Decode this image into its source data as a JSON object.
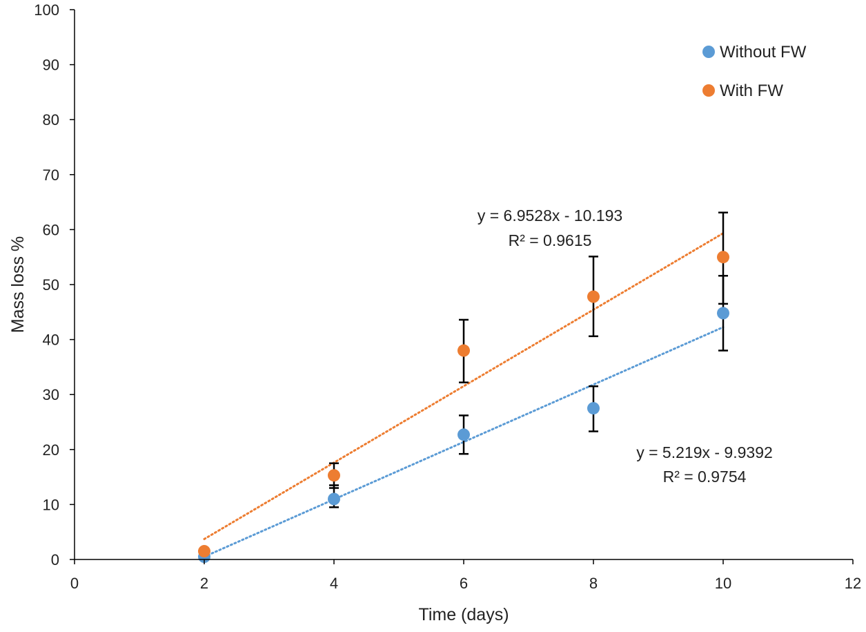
{
  "chart_data": {
    "type": "scatter",
    "title": "",
    "xlabel": "Time (days)",
    "ylabel": "Mass loss %",
    "xlim": [
      0,
      12
    ],
    "ylim": [
      0,
      100
    ],
    "xticks": [
      0,
      2,
      4,
      6,
      8,
      10,
      12
    ],
    "yticks": [
      0,
      10,
      20,
      30,
      40,
      50,
      60,
      70,
      80,
      90,
      100
    ],
    "grid": false,
    "legend_position": "top-right",
    "series": [
      {
        "name": "Without FW",
        "color": "#5B9BD5",
        "x": [
          2,
          4,
          6,
          8,
          10
        ],
        "y": [
          0.5,
          11,
          22.7,
          27.5,
          44.8
        ],
        "err_upper": [
          0.5,
          2.5,
          3.5,
          4.0,
          6.8
        ],
        "err_lower": [
          0.5,
          1.5,
          3.5,
          4.2,
          6.8
        ],
        "trendline": {
          "slope": 5.219,
          "intercept": -9.9392,
          "x_range": [
            2,
            10
          ],
          "equation": "y = 5.219x - 9.9392",
          "r2": "R² = 0.9754"
        }
      },
      {
        "name": "With FW",
        "color": "#ED7D31",
        "x": [
          2,
          4,
          6,
          8,
          10
        ],
        "y": [
          1.5,
          15.3,
          38,
          47.8,
          55
        ],
        "err_upper": [
          0,
          2.2,
          5.6,
          7.3,
          8.1
        ],
        "err_lower": [
          0,
          2.3,
          5.8,
          7.2,
          8.5
        ],
        "trendline": {
          "slope": 6.9528,
          "intercept": -10.193,
          "x_range": [
            2,
            10
          ],
          "equation": "y = 6.9528x - 10.193",
          "r2": "R² = 0.9615"
        }
      }
    ]
  }
}
